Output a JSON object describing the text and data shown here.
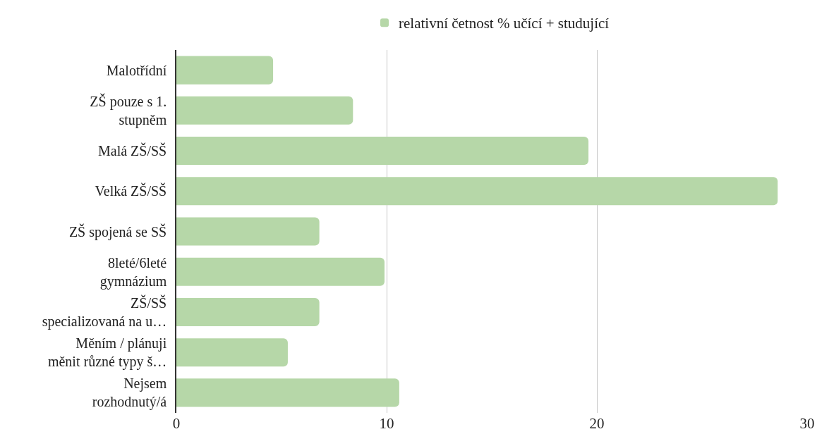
{
  "chart_data": {
    "type": "bar",
    "orientation": "horizontal",
    "categories": [
      "Malotřídní",
      "ZŠ pouze s 1.\nstupněm",
      "Malá ZŠ/SŠ",
      "Velká ZŠ/SŠ",
      "ZŠ spojená se SŠ",
      "8leté/6leté\ngymnázium",
      "ZŠ/SŠ\nspecializovaná na u…",
      "Měním / plánuji\nměnit různé typy š…",
      "Nejsem\nrozhodnutý/á"
    ],
    "series": [
      {
        "name": "relativní četnost % učící + studující",
        "color": "#b6d7a8",
        "values": [
          4.6,
          8.4,
          19.6,
          28.6,
          6.8,
          9.9,
          6.8,
          5.3,
          10.6
        ]
      }
    ],
    "xlim": [
      0,
      30
    ],
    "xticks": [
      0,
      10,
      20,
      30
    ],
    "grid": "x",
    "legend": "top"
  }
}
